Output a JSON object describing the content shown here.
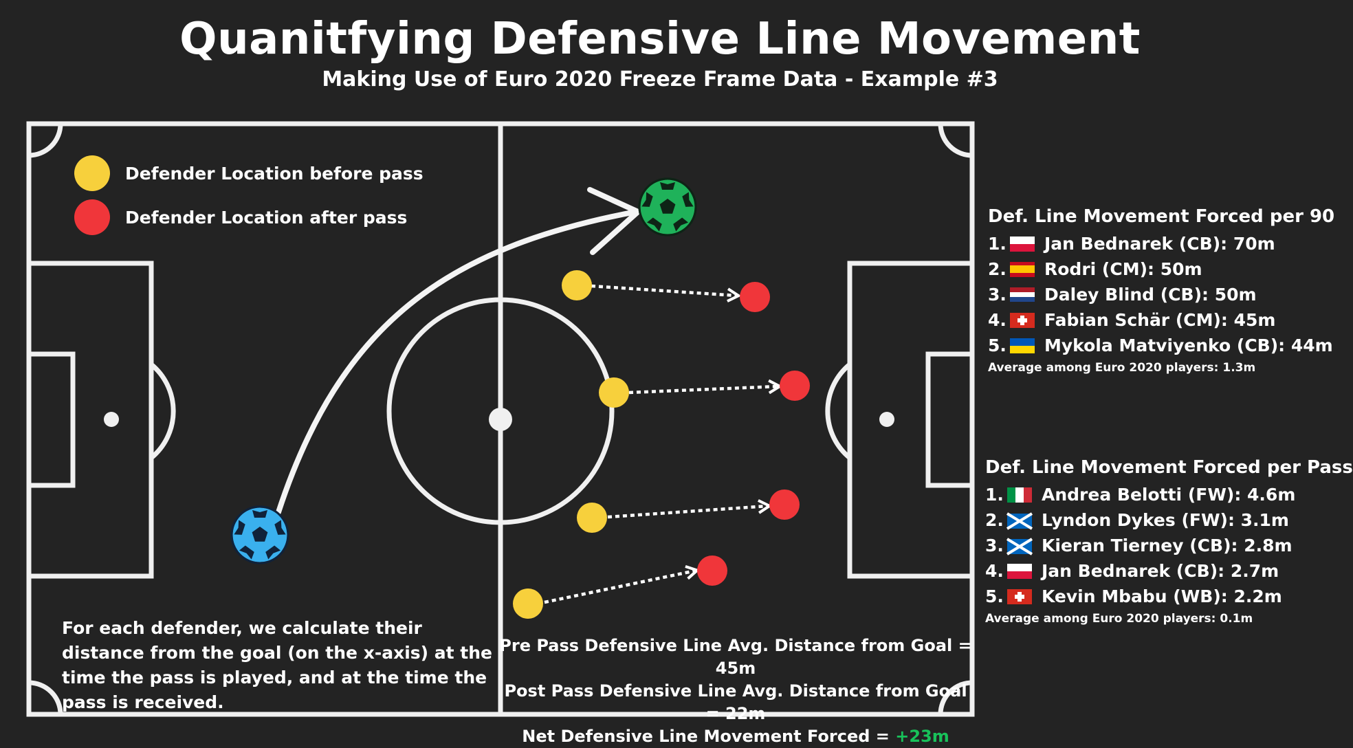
{
  "header": {
    "title": "Quanitfying Defensive Line Movement",
    "subtitle": "Making Use of Euro 2020 Freeze Frame Data  -  Example #3"
  },
  "legend": {
    "before_label": "Defender Location before pass",
    "before_color": "#f7d03c",
    "after_label": "Defender Location after pass",
    "after_color": "#f0363a"
  },
  "colors": {
    "background": "#232323",
    "pitch_lines": "#f0f0f0",
    "passer_ball": "#3ab0ee",
    "receiver_ball": "#1fb25a",
    "accent_green": "#18c25a"
  },
  "icons": {
    "passer": "soccer-ball-icon",
    "receiver": "soccer-ball-icon"
  },
  "method_text": "For each defender, we calculate their distance from the goal (on the x-axis) at the time the pass is played, and at the time the pass is received.",
  "stats": {
    "pre_pass": "Pre Pass Defensive Line Avg. Distance from Goal = 45m",
    "post_pass": "Post Pass Defensive Line Avg. Distance from Goal = 22m",
    "net_label": "Net Defensive Line Movement Forced = ",
    "net_value": "+23m"
  },
  "per90": {
    "title": "Def. Line Movement Forced per 90",
    "items": [
      {
        "rank": "1.",
        "flag": "poland-flag",
        "text": "Jan Bednarek (CB): 70m"
      },
      {
        "rank": "2.",
        "flag": "spain-flag",
        "text": "Rodri (CM): 50m"
      },
      {
        "rank": "3.",
        "flag": "netherlands-flag",
        "text": "Daley Blind (CB): 50m"
      },
      {
        "rank": "4.",
        "flag": "switzerland-flag",
        "text": "Fabian Schär (CM): 45m"
      },
      {
        "rank": "5.",
        "flag": "ukraine-flag",
        "text": "Mykola Matviyenko (CB): 44m"
      }
    ],
    "note": "Average among Euro 2020 players: 1.3m"
  },
  "perpass": {
    "title": "Def. Line Movement Forced per Pass",
    "items": [
      {
        "rank": "1.",
        "flag": "italy-flag",
        "text": "Andrea Belotti (FW): 4.6m"
      },
      {
        "rank": "2.",
        "flag": "scotland-flag",
        "text": "Lyndon Dykes (FW): 3.1m"
      },
      {
        "rank": "3.",
        "flag": "scotland-flag",
        "text": "Kieran Tierney (CB): 2.8m"
      },
      {
        "rank": "4.",
        "flag": "poland-flag",
        "text": "Jan Bednarek (CB): 2.7m"
      },
      {
        "rank": "5.",
        "flag": "switzerland-flag",
        "text": "Kevin Mbabu (WB): 2.2m"
      }
    ],
    "note": "Average among Euro 2020 players: 0.1m"
  }
}
